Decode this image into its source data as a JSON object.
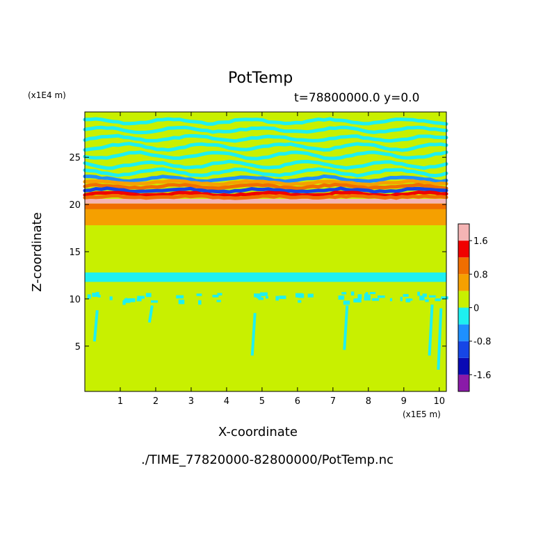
{
  "chart_data": {
    "type": "heatmap",
    "title": "PotTemp",
    "subtitle": "t=78800000.0 y=0.0",
    "source_file": "./TIME_77820000-82800000/PotTemp.nc",
    "xlabel": "X-coordinate",
    "ylabel": "Z-coordinate",
    "x_units": "(x1E5 m)",
    "y_units": "(x1E4 m)",
    "xlim": [
      0,
      10.2
    ],
    "ylim": [
      0.2,
      29.8
    ],
    "x_ticks": [
      1,
      2,
      3,
      4,
      5,
      6,
      7,
      8,
      9,
      10
    ],
    "y_ticks": [
      5,
      10,
      15,
      20,
      25
    ],
    "colorbar": {
      "levels": [
        -2.0,
        -1.6,
        -1.2,
        -0.8,
        -0.4,
        0,
        0.4,
        0.8,
        1.2,
        1.6,
        2.0
      ],
      "colors": [
        "#8a1aa8",
        "#0a0ab4",
        "#1646e6",
        "#1e90ff",
        "#1ef0f0",
        "#c8f000",
        "#f5a000",
        "#f06e00",
        "#f00000",
        "#f5b4b4"
      ],
      "tick_labels": [
        "1.6",
        "0.8",
        "0",
        "-0.8",
        "-1.6"
      ],
      "tick_values": [
        1.6,
        0.8,
        0,
        -0.8,
        -1.6
      ]
    },
    "bands": [
      {
        "z_range": [
          0.2,
          20.0
        ],
        "value": 0.2
      },
      {
        "z_range": [
          11.8,
          12.8
        ],
        "value": -0.2
      },
      {
        "z_range": [
          17.8,
          19.5
        ],
        "value": 0.6
      },
      {
        "z_range": [
          19.5,
          20.1
        ],
        "value": 1.0
      },
      {
        "z_range": [
          20.1,
          20.6
        ],
        "value": 2.0
      },
      {
        "z_range": [
          20.6,
          23.0
        ],
        "value": 0.2
      },
      {
        "z_range": [
          23.0,
          29.8
        ],
        "value": 0.0
      }
    ],
    "grid": false
  }
}
